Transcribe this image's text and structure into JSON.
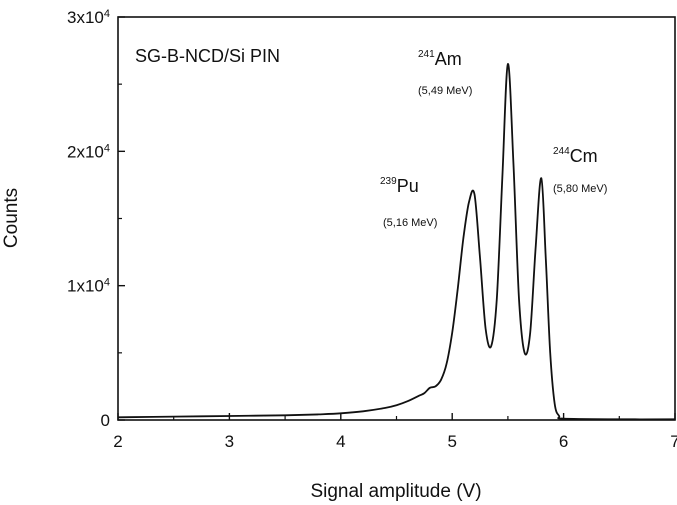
{
  "chart_data": {
    "type": "line",
    "inset_label": "SG-B-NCD/Si PIN",
    "xlabel": "Signal amplitude (V)",
    "ylabel": "Counts",
    "xlim": [
      2,
      7
    ],
    "ylim": [
      0,
      30000
    ],
    "x_ticks": [
      2,
      3,
      4,
      5,
      6,
      7
    ],
    "x_tick_labels": [
      "2",
      "3",
      "4",
      "5",
      "6",
      "7"
    ],
    "y_ticks": [
      {
        "value": 0,
        "mantissa": "0",
        "exponent": ""
      },
      {
        "value": 10000,
        "mantissa": "1x10",
        "exponent": "4"
      },
      {
        "value": 20000,
        "mantissa": "2x10",
        "exponent": "4"
      },
      {
        "value": 30000,
        "mantissa": "3x10",
        "exponent": "4"
      }
    ],
    "annotations": [
      {
        "isotope": "Pu",
        "mass": "239",
        "energy": "(5,16 MeV)",
        "peak_x": 5.2
      },
      {
        "isotope": "Am",
        "mass": "241",
        "energy": "(5,49 MeV)",
        "peak_x": 5.5
      },
      {
        "isotope": "Cm",
        "mass": "244",
        "energy": "(5,80 MeV)",
        "peak_x": 5.8
      }
    ],
    "series": [
      {
        "x": [
          2.0,
          2.5,
          3.0,
          3.5,
          3.8,
          4.0,
          4.2,
          4.4,
          4.5,
          4.6,
          4.7,
          4.75,
          4.8,
          4.85,
          4.9,
          4.95,
          5.0,
          5.05,
          5.1,
          5.15,
          5.2,
          5.25,
          5.3,
          5.35,
          5.4,
          5.45,
          5.5,
          5.55,
          5.6,
          5.65,
          5.7,
          5.75,
          5.8,
          5.84,
          5.88,
          5.92,
          5.96,
          6.0,
          6.5,
          7.0
        ],
        "y": [
          200,
          250,
          300,
          350,
          420,
          500,
          650,
          900,
          1100,
          1400,
          1800,
          2000,
          2400,
          2500,
          3000,
          4200,
          6500,
          9800,
          13500,
          16200,
          16800,
          12000,
          6800,
          5500,
          9000,
          18000,
          26500,
          19000,
          9000,
          5000,
          6500,
          13000,
          18000,
          12000,
          5000,
          1200,
          300,
          100,
          50,
          50
        ]
      }
    ]
  }
}
